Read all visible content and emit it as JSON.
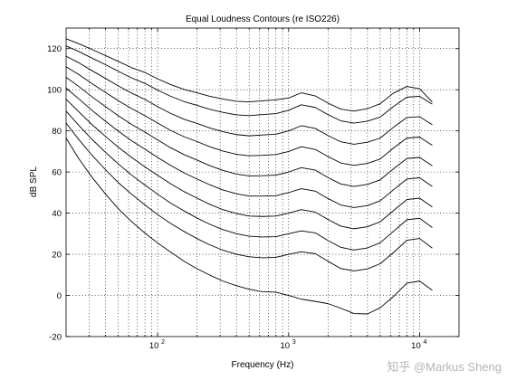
{
  "chart_data": {
    "type": "line",
    "title": "Equal Loudness Contours (re ISO226)",
    "xlabel": "Frequency (Hz)",
    "ylabel": "dB SPL",
    "xscale": "log",
    "xlim": [
      20,
      20000
    ],
    "ylim": [
      -20,
      130
    ],
    "yticks": [
      -20,
      0,
      20,
      40,
      60,
      80,
      100,
      120
    ],
    "xticks": [
      {
        "value": 100,
        "base": "10",
        "exp": "2"
      },
      {
        "value": 1000,
        "base": "10",
        "exp": "3"
      },
      {
        "value": 10000,
        "base": "10",
        "exp": "4"
      }
    ],
    "grid": "dotted, major and minor",
    "x": [
      20,
      25,
      31.5,
      40,
      50,
      63,
      80,
      100,
      125,
      160,
      200,
      250,
      315,
      400,
      500,
      630,
      800,
      1000,
      1250,
      1600,
      2000,
      2500,
      3150,
      4000,
      5000,
      6300,
      8000,
      10000,
      12500
    ],
    "series": [
      {
        "values": [
          76.5,
          66.5,
          57.5,
          49.3,
          42.2,
          36.0,
          30.3,
          25.5,
          21.2,
          16.5,
          13.0,
          9.9,
          7.0,
          4.7,
          3.0,
          1.8,
          1.6,
          0.0,
          -1.8,
          -2.9,
          -4.0,
          -6.2,
          -8.8,
          -9.0,
          -6.0,
          -0.6,
          6.0,
          7.0,
          2.5
        ]
      },
      {
        "values": [
          83.8,
          75.8,
          68.2,
          61.1,
          54.9,
          49.3,
          44.0,
          39.3,
          35.1,
          31.0,
          27.6,
          24.6,
          22.0,
          20.0,
          18.8,
          18.3,
          18.5,
          20.0,
          21.2,
          20.3,
          16.6,
          13.1,
          11.9,
          12.9,
          15.4,
          20.8,
          26.8,
          27.7,
          23.0
        ]
      },
      {
        "values": [
          89.6,
          82.7,
          75.9,
          69.6,
          64.0,
          58.6,
          53.7,
          49.2,
          45.0,
          41.0,
          37.6,
          34.6,
          32.0,
          30.0,
          28.8,
          28.4,
          28.6,
          30.0,
          31.4,
          30.4,
          26.7,
          23.4,
          22.1,
          23.1,
          25.6,
          31.1,
          36.8,
          37.5,
          33.0
        ]
      },
      {
        "values": [
          95.4,
          89.3,
          83.1,
          77.3,
          72.1,
          67.2,
          62.5,
          58.4,
          54.4,
          50.4,
          47.3,
          44.3,
          41.7,
          39.8,
          38.6,
          38.4,
          38.6,
          40.0,
          41.7,
          40.5,
          36.9,
          33.7,
          32.4,
          33.4,
          35.8,
          41.2,
          46.6,
          47.3,
          43.0
        ]
      },
      {
        "values": [
          100.8,
          95.6,
          90.0,
          84.7,
          79.9,
          75.3,
          71.1,
          67.1,
          63.3,
          59.5,
          56.6,
          53.8,
          51.3,
          49.4,
          48.3,
          48.3,
          48.5,
          50.0,
          51.9,
          50.7,
          47.1,
          44.0,
          42.7,
          43.7,
          46.0,
          51.3,
          56.6,
          57.2,
          53.0
        ]
      },
      {
        "values": [
          106.1,
          101.6,
          96.6,
          91.8,
          87.4,
          83.2,
          79.4,
          75.6,
          71.9,
          68.4,
          65.8,
          63.1,
          60.8,
          59.0,
          58.1,
          58.2,
          58.5,
          60.0,
          62.1,
          60.9,
          57.3,
          54.2,
          53.0,
          54.0,
          56.2,
          61.5,
          66.6,
          67.1,
          63.0
        ]
      },
      {
        "values": [
          111.2,
          107.4,
          103.0,
          98.7,
          94.7,
          90.9,
          87.4,
          83.8,
          80.3,
          77.1,
          74.8,
          72.3,
          70.2,
          68.6,
          67.9,
          68.1,
          68.5,
          70.0,
          72.3,
          71.0,
          67.5,
          64.4,
          63.2,
          64.2,
          66.3,
          71.6,
          76.5,
          77.0,
          73.0
        ]
      },
      {
        "values": [
          116.3,
          113.1,
          109.3,
          105.5,
          101.9,
          98.4,
          95.3,
          91.8,
          88.6,
          85.6,
          83.6,
          81.4,
          79.6,
          78.2,
          77.6,
          78.0,
          78.4,
          80.0,
          82.5,
          81.2,
          77.7,
          74.7,
          73.5,
          74.5,
          76.5,
          81.7,
          86.5,
          86.9,
          83.0
        ]
      },
      {
        "values": [
          121.3,
          118.6,
          115.4,
          112.2,
          109.0,
          105.8,
          103.1,
          99.8,
          96.9,
          94.2,
          92.4,
          90.5,
          89.0,
          87.8,
          87.4,
          87.9,
          88.4,
          90.0,
          92.7,
          91.4,
          87.9,
          84.9,
          83.8,
          84.7,
          86.7,
          91.8,
          96.4,
          96.8,
          93.0
        ]
      },
      {
        "values": [
          124.8,
          122.4,
          119.6,
          116.6,
          113.8,
          110.8,
          108.4,
          105.3,
          102.6,
          100.1,
          98.5,
          96.8,
          95.5,
          94.4,
          94.1,
          94.6,
          95.1,
          96.0,
          98.5,
          97.0,
          93.5,
          90.6,
          89.6,
          90.8,
          93.2,
          98.3,
          101.6,
          100.5,
          94.0
        ]
      }
    ]
  },
  "watermark": "知乎 @Markus Sheng"
}
